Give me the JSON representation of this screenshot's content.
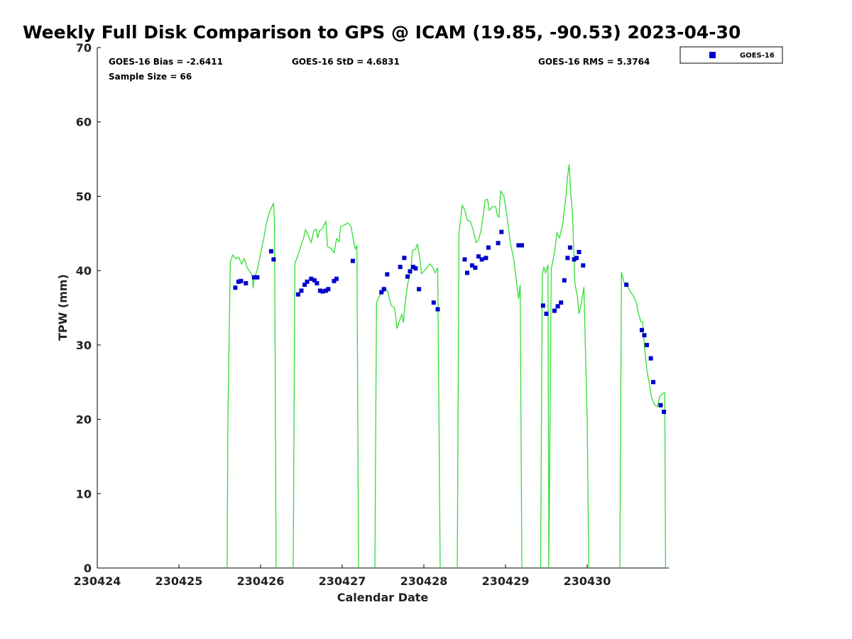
{
  "chart_data": {
    "type": "scatter",
    "title": "Weekly Full Disk Comparison to GPS @ ICAM (19.85, -90.53) 2023-04-30",
    "xlabel": "Calendar Date",
    "ylabel": "TPW (mm)",
    "xlim": [
      0,
      7
    ],
    "ylim": [
      0,
      70
    ],
    "x_ticks": [
      0,
      1,
      2,
      3,
      4,
      5,
      6
    ],
    "x_tick_labels": [
      "230424",
      "230425",
      "230426",
      "230427",
      "230428",
      "230429",
      "230430"
    ],
    "y_ticks": [
      0,
      10,
      20,
      30,
      40,
      50,
      60,
      70
    ],
    "y_tick_labels": [
      "0",
      "10",
      "20",
      "30",
      "40",
      "50",
      "60",
      "70"
    ],
    "stats": {
      "bias": "GOES-16 Bias = -2.6411",
      "std": "GOES-16 StD = 4.6831",
      "rms": "GOES-16 RMS = 5.3764",
      "sample": "Sample Size = 66"
    },
    "legend": {
      "placement": "top-right outside",
      "entries": [
        "GOES-16"
      ]
    },
    "colors": {
      "goes": "#0000cc",
      "gps": "#33dd33"
    },
    "series": [
      {
        "name": "GOES-16",
        "type": "scatter",
        "points": [
          [
            1.69,
            37.7
          ],
          [
            1.73,
            38.5
          ],
          [
            1.76,
            38.6
          ],
          [
            1.82,
            38.3
          ],
          [
            1.92,
            39.1
          ],
          [
            1.96,
            39.1
          ],
          [
            2.13,
            42.6
          ],
          [
            2.16,
            41.5
          ],
          [
            2.46,
            36.8
          ],
          [
            2.5,
            37.3
          ],
          [
            2.54,
            38.1
          ],
          [
            2.57,
            38.5
          ],
          [
            2.62,
            38.9
          ],
          [
            2.66,
            38.7
          ],
          [
            2.69,
            38.3
          ],
          [
            2.73,
            37.3
          ],
          [
            2.76,
            37.2
          ],
          [
            2.8,
            37.3
          ],
          [
            2.83,
            37.5
          ],
          [
            2.9,
            38.6
          ],
          [
            2.93,
            38.9
          ],
          [
            3.13,
            41.3
          ],
          [
            3.48,
            37.1
          ],
          [
            3.51,
            37.5
          ],
          [
            3.55,
            39.5
          ],
          [
            3.71,
            40.5
          ],
          [
            3.76,
            41.7
          ],
          [
            3.8,
            39.2
          ],
          [
            3.83,
            39.9
          ],
          [
            3.87,
            40.5
          ],
          [
            3.9,
            40.3
          ],
          [
            3.94,
            37.5
          ],
          [
            4.12,
            35.7
          ],
          [
            4.17,
            34.8
          ],
          [
            4.5,
            41.5
          ],
          [
            4.53,
            39.7
          ],
          [
            4.59,
            40.7
          ],
          [
            4.63,
            40.4
          ],
          [
            4.67,
            41.9
          ],
          [
            4.71,
            41.5
          ],
          [
            4.76,
            41.7
          ],
          [
            4.79,
            43.1
          ],
          [
            4.91,
            43.7
          ],
          [
            4.95,
            45.2
          ],
          [
            5.16,
            43.4
          ],
          [
            5.2,
            43.4
          ],
          [
            5.46,
            35.3
          ],
          [
            5.5,
            34.2
          ],
          [
            5.6,
            34.6
          ],
          [
            5.64,
            35.2
          ],
          [
            5.68,
            35.7
          ],
          [
            5.72,
            38.7
          ],
          [
            5.76,
            41.7
          ],
          [
            5.79,
            43.1
          ],
          [
            5.84,
            41.5
          ],
          [
            5.87,
            41.7
          ],
          [
            5.9,
            42.5
          ],
          [
            5.95,
            40.7
          ],
          [
            6.48,
            38.1
          ],
          [
            6.67,
            32
          ],
          [
            6.7,
            31.3
          ],
          [
            6.73,
            30
          ],
          [
            6.78,
            28.2
          ],
          [
            6.81,
            25
          ],
          [
            6.9,
            21.9
          ],
          [
            6.94,
            21
          ]
        ]
      },
      {
        "name": "GPS",
        "type": "line",
        "segments": [
          [
            [
              1.59,
              0
            ],
            [
              1.6,
              20
            ],
            [
              1.63,
              41.2
            ],
            [
              1.66,
              42.1
            ],
            [
              1.7,
              41.6
            ],
            [
              1.73,
              41.8
            ],
            [
              1.77,
              40.9
            ],
            [
              1.8,
              41.6
            ],
            [
              1.84,
              40.3
            ],
            [
              1.88,
              39.7
            ],
            [
              1.9,
              39.2
            ],
            [
              1.91,
              37.6
            ],
            [
              1.92,
              38.9
            ],
            [
              1.96,
              40.1
            ],
            [
              2.0,
              42.3
            ],
            [
              2.04,
              44.4
            ],
            [
              2.07,
              46.2
            ],
            [
              2.1,
              47.6
            ],
            [
              2.13,
              48.4
            ],
            [
              2.16,
              49.1
            ],
            [
              2.17,
              46.9
            ],
            [
              2.19,
              0
            ]
          ],
          [
            [
              2.4,
              0
            ],
            [
              2.42,
              41.0
            ],
            [
              2.45,
              41.8
            ],
            [
              2.49,
              43.2
            ],
            [
              2.52,
              44.1
            ],
            [
              2.55,
              45.5
            ],
            [
              2.58,
              44.8
            ],
            [
              2.62,
              43.8
            ],
            [
              2.65,
              45.3
            ],
            [
              2.68,
              45.6
            ],
            [
              2.7,
              44.4
            ],
            [
              2.72,
              45.3
            ],
            [
              2.76,
              45.7
            ],
            [
              2.8,
              46.6
            ],
            [
              2.82,
              43.2
            ],
            [
              2.86,
              43.0
            ],
            [
              2.9,
              42.4
            ],
            [
              2.93,
              44.3
            ],
            [
              2.96,
              43.9
            ],
            [
              2.98,
              45.9
            ],
            [
              3.02,
              46.1
            ],
            [
              3.07,
              46.4
            ],
            [
              3.11,
              45.9
            ],
            [
              3.13,
              44.5
            ],
            [
              3.16,
              42.9
            ],
            [
              3.18,
              43.4
            ],
            [
              3.2,
              0
            ]
          ],
          [
            [
              3.4,
              0
            ],
            [
              3.42,
              35.7
            ],
            [
              3.46,
              36.7
            ],
            [
              3.5,
              37.0
            ],
            [
              3.53,
              37.7
            ],
            [
              3.56,
              37.1
            ],
            [
              3.6,
              35.3
            ],
            [
              3.64,
              35.0
            ],
            [
              3.66,
              33.5
            ],
            [
              3.67,
              32.2
            ],
            [
              3.7,
              33.2
            ],
            [
              3.73,
              34.1
            ],
            [
              3.75,
              33.0
            ],
            [
              3.77,
              35.5
            ],
            [
              3.8,
              38.1
            ],
            [
              3.84,
              40.0
            ],
            [
              3.86,
              42.7
            ],
            [
              3.9,
              42.9
            ],
            [
              3.92,
              43.6
            ],
            [
              3.95,
              41.7
            ],
            [
              3.97,
              39.6
            ],
            [
              4.0,
              39.9
            ],
            [
              4.03,
              40.3
            ],
            [
              4.07,
              40.9
            ],
            [
              4.1,
              40.6
            ],
            [
              4.14,
              39.7
            ],
            [
              4.17,
              40.4
            ],
            [
              4.2,
              0
            ]
          ],
          [
            [
              4.41,
              0
            ],
            [
              4.43,
              45.0
            ],
            [
              4.47,
              48.8
            ],
            [
              4.5,
              48.2
            ],
            [
              4.53,
              46.8
            ],
            [
              4.57,
              46.6
            ],
            [
              4.6,
              45.6
            ],
            [
              4.64,
              43.8
            ],
            [
              4.67,
              44.1
            ],
            [
              4.7,
              45.4
            ],
            [
              4.73,
              47.7
            ],
            [
              4.75,
              49.5
            ],
            [
              4.78,
              49.6
            ],
            [
              4.8,
              48.1
            ],
            [
              4.84,
              48.6
            ],
            [
              4.88,
              48.6
            ],
            [
              4.9,
              47.4
            ],
            [
              4.92,
              47.2
            ],
            [
              4.94,
              50.7
            ],
            [
              4.98,
              50.0
            ],
            [
              5.02,
              47.2
            ],
            [
              5.06,
              43.7
            ],
            [
              5.1,
              41.6
            ],
            [
              5.12,
              39.8
            ],
            [
              5.14,
              37.9
            ],
            [
              5.16,
              36.2
            ],
            [
              5.18,
              38.1
            ],
            [
              5.2,
              0
            ]
          ],
          [
            [
              5.43,
              0
            ],
            [
              5.45,
              39.4
            ],
            [
              5.47,
              40.5
            ],
            [
              5.49,
              39.7
            ],
            [
              5.52,
              40.8
            ],
            [
              5.53,
              0
            ],
            [
              5.56,
              40.2
            ],
            [
              5.6,
              42.4
            ],
            [
              5.63,
              45.1
            ],
            [
              5.66,
              44.4
            ],
            [
              5.7,
              46.2
            ],
            [
              5.74,
              50.1
            ],
            [
              5.76,
              52.7
            ],
            [
              5.78,
              54.3
            ],
            [
              5.8,
              50.3
            ],
            [
              5.82,
              47.6
            ],
            [
              5.85,
              38.3
            ],
            [
              5.88,
              36.5
            ],
            [
              5.9,
              34.2
            ],
            [
              5.93,
              35.6
            ],
            [
              5.96,
              37.8
            ],
            [
              6.0,
              20
            ],
            [
              6.02,
              0
            ]
          ],
          [
            [
              6.4,
              0
            ],
            [
              6.42,
              39.8
            ],
            [
              6.45,
              38.4
            ],
            [
              6.49,
              38.1
            ],
            [
              6.52,
              37.3
            ],
            [
              6.56,
              36.7
            ],
            [
              6.6,
              35.8
            ],
            [
              6.63,
              34.1
            ],
            [
              6.66,
              33.1
            ],
            [
              6.68,
              33.1
            ],
            [
              6.7,
              30.0
            ],
            [
              6.73,
              26.6
            ],
            [
              6.76,
              24.9
            ],
            [
              6.79,
              22.8
            ],
            [
              6.83,
              21.9
            ],
            [
              6.86,
              21.7
            ],
            [
              6.89,
              23.1
            ],
            [
              6.92,
              23.4
            ],
            [
              6.95,
              23.6
            ],
            [
              6.96,
              0
            ]
          ]
        ]
      }
    ]
  }
}
